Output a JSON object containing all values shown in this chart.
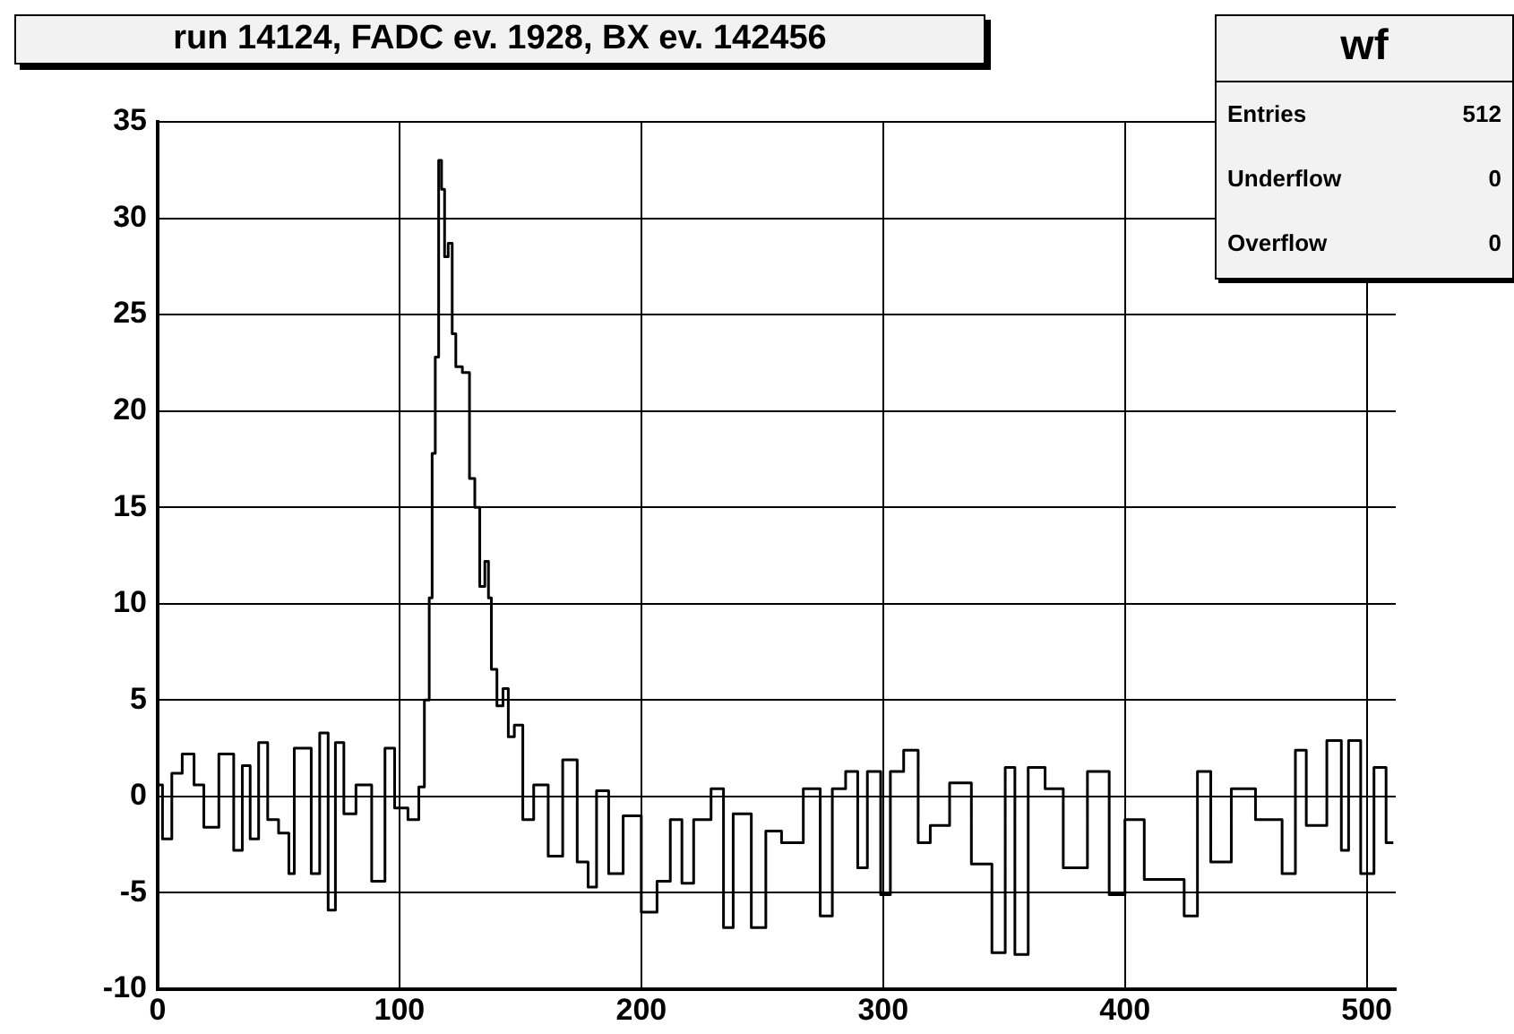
{
  "chart_data": {
    "type": "step",
    "title": "run 14124, FADC ev. 1928, BX ev. 142456",
    "x": [
      0,
      4,
      7.7,
      12.6,
      17.5,
      20.7,
      29.9,
      33,
      37,
      39.5,
      44,
      47,
      53,
      55.5,
      57.5,
      62,
      65,
      69,
      72,
      75,
      79,
      85,
      92,
      96,
      100,
      107,
      109,
      111.6,
      113,
      114,
      115.6,
      116.8,
      118,
      119.3,
      121,
      122.6,
      124,
      128,
      129.9,
      132.4,
      134,
      136.6,
      137,
      139,
      141.6,
      144,
      146,
      149,
      153,
      158,
      165,
      170,
      177,
      179,
      184,
      189,
      196,
      204,
      209,
      215,
      218.6,
      224.7,
      233,
      235,
      241,
      250,
      253,
      263,
      271,
      277,
      281,
      288,
      291,
      296,
      302,
      304,
      313,
      316,
      323,
      332,
      341,
      349,
      352,
      357,
      363,
      371,
      378,
      391,
      396,
      404,
      412,
      420,
      429,
      431,
      440,
      448,
      460,
      470,
      471,
      479,
      488,
      491,
      494,
      501,
      505,
      511
    ],
    "values": [
      0.6,
      -2.2,
      1.2,
      2.2,
      0.6,
      -1.6,
      2.2,
      -2.8,
      1.6,
      -2.2,
      2.8,
      -1.2,
      -1.9,
      -4,
      2.5,
      2.5,
      -4,
      3.3,
      -5.9,
      2.8,
      -0.9,
      0.6,
      -4.4,
      2.5,
      -0.6,
      -1.2,
      0.5,
      5,
      10.3,
      17.8,
      22.8,
      33,
      31.5,
      28,
      28.7,
      24,
      22.3,
      22,
      16.5,
      15,
      10.9,
      12.2,
      10.3,
      6.6,
      4.7,
      5.6,
      3.1,
      3.7,
      -1.2,
      0.6,
      -3.1,
      1.9,
      -3.4,
      -4.7,
      0.3,
      -4,
      -1,
      -6,
      -4.4,
      -1.2,
      -4.5,
      -1.2,
      0.4,
      -6.8,
      -0.9,
      -6.8,
      -1.8,
      -2.4,
      0.4,
      -6.2,
      0.4,
      1.3,
      -3.7,
      1.3,
      -5.1,
      1.3,
      2.4,
      -2.4,
      -1.5,
      0.7,
      -3.5,
      -8.1,
      1.5,
      -8.2,
      1.5,
      0.4,
      -3.7,
      1.3,
      -5.1,
      -1.2,
      -4.3,
      -4.3,
      -6.2,
      1.3,
      -3.4,
      0.4,
      -1.2,
      -4,
      2.4,
      -1.5,
      2.9,
      -2.8,
      2.9,
      -4,
      1.5,
      -2.4
    ],
    "color": "#000000",
    "xlim": [
      0,
      512
    ],
    "xticks": [
      0,
      100,
      200,
      300,
      400,
      500
    ],
    "ylim": [
      -10,
      35
    ],
    "yticks": [
      -10,
      -5,
      0,
      5,
      10,
      15,
      20,
      25,
      30,
      35
    ],
    "grid": true,
    "legend": false,
    "annotations": [
      "wf",
      "Entries",
      "512",
      "Underflow",
      "0",
      "Overflow",
      "0"
    ]
  }
}
